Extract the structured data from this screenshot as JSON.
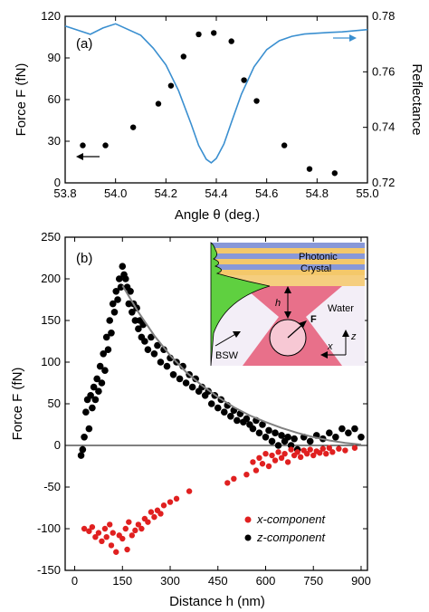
{
  "chart_data": [
    {
      "type": "scatter",
      "panel_label": "(a)",
      "xlabel": "Angle θ (deg.)",
      "ylabel": "Force F (fN)",
      "y2label": "Reflectance",
      "xlim": [
        53.8,
        55.0
      ],
      "ylim": [
        0,
        120
      ],
      "y2lim": [
        0.72,
        0.78
      ],
      "xticks": [
        "53.8",
        "54.0",
        "54.2",
        "54.4",
        "54.6",
        "54.8",
        "55.0"
      ],
      "yticks": [
        "0",
        "30",
        "60",
        "90",
        "120"
      ],
      "y2ticks": [
        "0.72",
        "0.74",
        "0.76",
        "0.78"
      ],
      "colors": {
        "reflectance": "#3a8fd0",
        "force": "#000000"
      },
      "series": [
        {
          "axis": "left",
          "style": "points",
          "x": [
            53.87,
            53.96,
            54.07,
            54.17,
            54.22,
            54.27,
            54.33,
            54.39,
            54.46,
            54.51,
            54.56,
            54.67,
            54.77,
            54.87
          ],
          "y": [
            27,
            27,
            40,
            57,
            70,
            91,
            107,
            108,
            102,
            74,
            59,
            27,
            10,
            7
          ]
        },
        {
          "axis": "right",
          "style": "line",
          "x": [
            53.8,
            53.9,
            53.95,
            54.0,
            54.1,
            54.15,
            54.2,
            54.25,
            54.3,
            54.33,
            54.36,
            54.38,
            54.4,
            54.43,
            54.46,
            54.5,
            54.55,
            54.6,
            54.65,
            54.7,
            54.75,
            54.8,
            54.85,
            54.9,
            54.95,
            55.0
          ],
          "y": [
            0.7765,
            0.7735,
            0.7758,
            0.7773,
            0.7732,
            0.7685,
            0.7625,
            0.7532,
            0.7412,
            0.7335,
            0.7285,
            0.7272,
            0.7288,
            0.734,
            0.7418,
            0.752,
            0.7618,
            0.768,
            0.7712,
            0.7728,
            0.7736,
            0.7739,
            0.7742,
            0.7744,
            0.7748,
            0.7752
          ]
        }
      ]
    },
    {
      "type": "scatter",
      "panel_label": "(b)",
      "xlabel": "Distance h (nm)",
      "ylabel": "Force F (fN)",
      "xlim": [
        -30,
        920
      ],
      "ylim": [
        -150,
        250
      ],
      "xticks": [
        "0",
        "150",
        "300",
        "450",
        "600",
        "750",
        "900"
      ],
      "yticks": [
        "-150",
        "-100",
        "-50",
        "0",
        "50",
        "100",
        "150",
        "200",
        "250"
      ],
      "colors": {
        "x_component": "#e02020",
        "z_component": "#000000",
        "fit": "#808080"
      },
      "legend": {
        "placement": "bottom-right",
        "entries": [
          "x-component",
          "z-component"
        ]
      },
      "series": [
        {
          "name": "x-component",
          "x": [
            30,
            45,
            55,
            65,
            75,
            85,
            95,
            100,
            110,
            115,
            120,
            130,
            140,
            150,
            160,
            165,
            170,
            180,
            190,
            200,
            210,
            220,
            230,
            240,
            250,
            260,
            270,
            280,
            300,
            320,
            360,
            480,
            500,
            540,
            560,
            570,
            580,
            590,
            600,
            610,
            620,
            630,
            640,
            650,
            660,
            670,
            680,
            690,
            700,
            710,
            720,
            730,
            740,
            750,
            760,
            770,
            780,
            790,
            800,
            810,
            830,
            850,
            880
          ],
          "y": [
            -100,
            -103,
            -98,
            -110,
            -105,
            -115,
            -100,
            -110,
            -95,
            -120,
            -105,
            -128,
            -108,
            -112,
            -100,
            -125,
            -92,
            -108,
            -102,
            -95,
            -100,
            -88,
            -92,
            -80,
            -86,
            -78,
            -82,
            -72,
            -68,
            -64,
            -55,
            -45,
            -40,
            -35,
            -20,
            -30,
            -15,
            -22,
            -10,
            -25,
            -12,
            -18,
            -8,
            -15,
            -10,
            -20,
            -5,
            -12,
            -8,
            -14,
            -6,
            -10,
            -5,
            -12,
            -7,
            -9,
            -4,
            -10,
            -3,
            -8,
            -4,
            -6,
            -3
          ]
        },
        {
          "name": "z-component",
          "x": [
            20,
            25,
            30,
            35,
            40,
            45,
            50,
            55,
            60,
            65,
            70,
            75,
            80,
            85,
            90,
            95,
            100,
            105,
            110,
            115,
            120,
            125,
            130,
            135,
            140,
            145,
            150,
            155,
            160,
            165,
            170,
            175,
            180,
            185,
            190,
            195,
            200,
            205,
            210,
            215,
            220,
            230,
            240,
            250,
            260,
            270,
            280,
            290,
            300,
            310,
            320,
            330,
            340,
            350,
            360,
            370,
            380,
            390,
            400,
            410,
            420,
            430,
            440,
            450,
            460,
            470,
            480,
            490,
            500,
            510,
            520,
            530,
            540,
            550,
            560,
            570,
            580,
            590,
            600,
            610,
            620,
            630,
            640,
            650,
            660,
            670,
            680,
            690,
            700,
            720,
            740,
            760,
            780,
            800,
            820,
            840,
            860,
            880,
            900
          ],
          "y": [
            -12,
            -5,
            10,
            40,
            55,
            20,
            60,
            45,
            70,
            55,
            80,
            65,
            95,
            75,
            110,
            90,
            130,
            115,
            150,
            135,
            170,
            160,
            185,
            175,
            200,
            190,
            215,
            205,
            200,
            190,
            170,
            185,
            160,
            170,
            150,
            165,
            140,
            150,
            130,
            145,
            125,
            115,
            130,
            110,
            120,
            100,
            115,
            95,
            105,
            85,
            100,
            80,
            95,
            75,
            85,
            70,
            80,
            65,
            70,
            60,
            65,
            50,
            60,
            45,
            55,
            40,
            48,
            35,
            42,
            30,
            38,
            28,
            32,
            25,
            20,
            30,
            15,
            25,
            10,
            18,
            5,
            15,
            0,
            12,
            5,
            10,
            0,
            8,
            -5,
            10,
            5,
            12,
            8,
            15,
            10,
            20,
            15,
            20,
            10
          ]
        },
        {
          "name": "fit",
          "style": "line",
          "x": [
            150,
            200,
            250,
            300,
            350,
            400,
            450,
            500,
            550,
            600,
            650,
            700,
            750,
            800,
            850,
            900
          ],
          "y": [
            192,
            160,
            132,
            108,
            88,
            72,
            58,
            46,
            36,
            28,
            21,
            15,
            10,
            6,
            3,
            1
          ]
        }
      ],
      "inset": {
        "labels": {
          "photonic": "Photonic",
          "crystal": "Crystal",
          "water": "Water",
          "bsw": "BSW",
          "h": "h",
          "F": "F",
          "z": "z",
          "x": "x"
        },
        "colors": {
          "layer_blue": "#8898d8",
          "layer_gold": "#f4c86a",
          "field_green": "#5fd040",
          "beam_pink": "#e8708a",
          "background": "#f3eef7"
        }
      }
    }
  ]
}
